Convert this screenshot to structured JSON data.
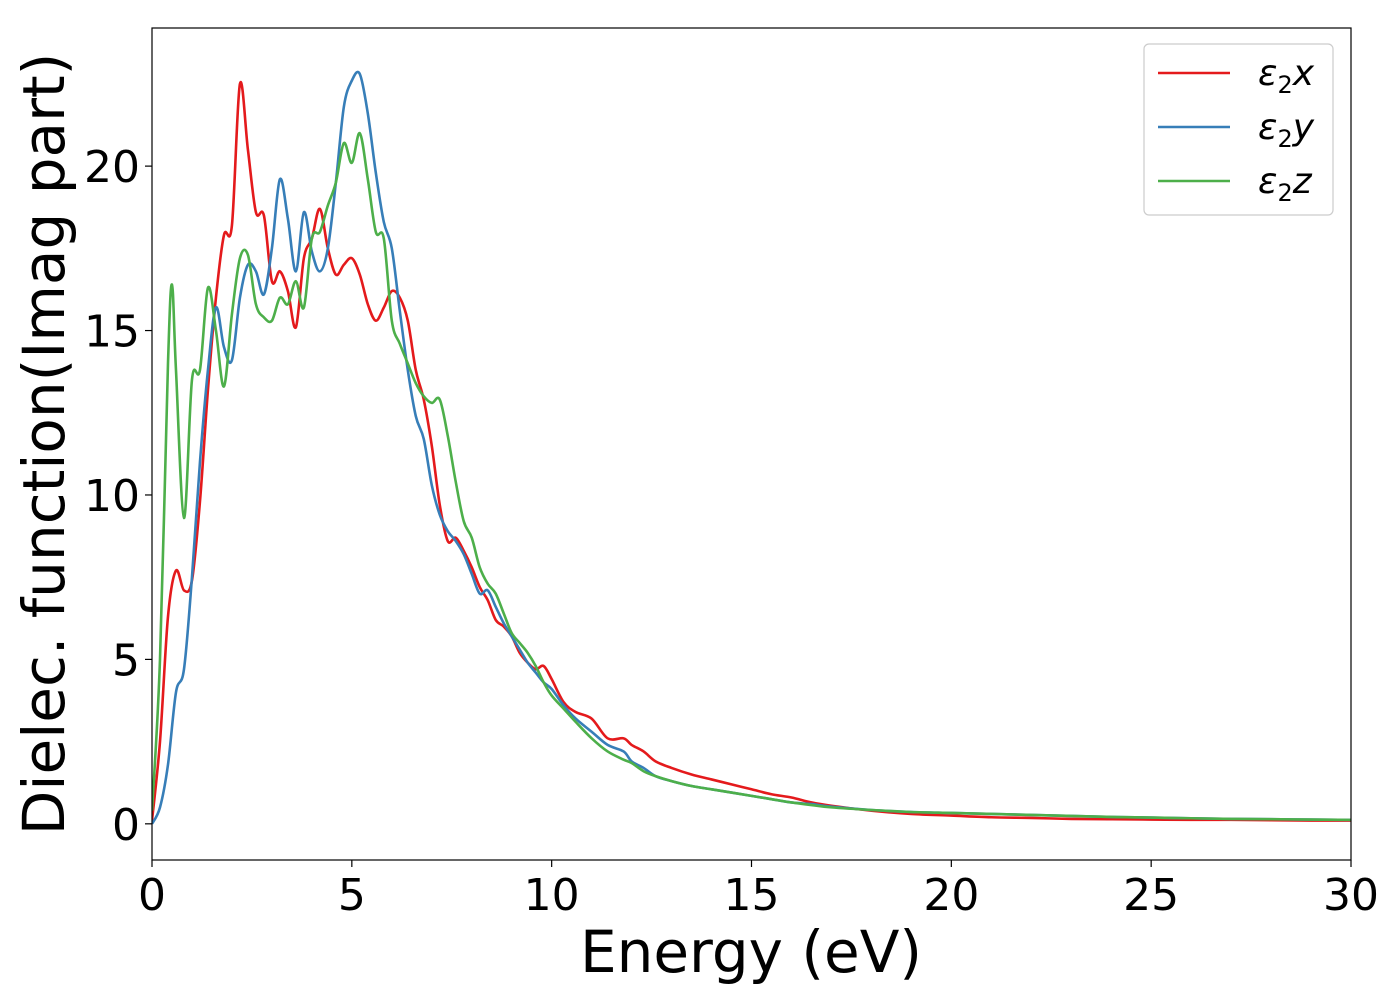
{
  "chart_data": {
    "type": "line",
    "xlabel": "Energy (eV)",
    "ylabel": "Dielec. function(Imag part)",
    "xlim": [
      0,
      30
    ],
    "ylim": [
      -1.1,
      24.2
    ],
    "xticks": [
      0,
      5,
      10,
      15,
      20,
      25,
      30
    ],
    "yticks": [
      0,
      5,
      10,
      15,
      20
    ],
    "grid": false,
    "legend_position": "top-right",
    "series": [
      {
        "name": "ε2x",
        "legend_main": "ε",
        "legend_sub": "2",
        "legend_var": "x",
        "color": "#e41a1c",
        "x": [
          0,
          0.2,
          0.4,
          0.6,
          0.8,
          1.0,
          1.2,
          1.4,
          1.6,
          1.8,
          2.0,
          2.2,
          2.4,
          2.6,
          2.8,
          3.0,
          3.2,
          3.4,
          3.6,
          3.8,
          4.0,
          4.2,
          4.4,
          4.6,
          4.8,
          5.0,
          5.2,
          5.4,
          5.6,
          5.8,
          6.0,
          6.2,
          6.4,
          6.6,
          6.8,
          7.0,
          7.2,
          7.4,
          7.6,
          7.8,
          8.0,
          8.2,
          8.4,
          8.6,
          8.8,
          9.0,
          9.2,
          9.4,
          9.6,
          9.8,
          10.0,
          10.3,
          10.6,
          11.0,
          11.4,
          11.8,
          12.0,
          12.3,
          12.6,
          13.0,
          13.5,
          14.0,
          14.5,
          15.0,
          15.5,
          16.0,
          16.5,
          17.0,
          18.0,
          19.0,
          20.0,
          21.0,
          22.0,
          23.0,
          24.0,
          25.0,
          26.0,
          27.0,
          28.0,
          29.0,
          30.0
        ],
        "values": [
          0.1,
          2.5,
          6.3,
          7.7,
          7.1,
          7.4,
          9.8,
          13.2,
          16.0,
          17.9,
          18.2,
          22.5,
          20.5,
          18.6,
          18.5,
          16.5,
          16.8,
          16.2,
          15.1,
          17.2,
          17.8,
          18.7,
          17.5,
          16.7,
          17.0,
          17.2,
          16.7,
          15.8,
          15.3,
          15.7,
          16.2,
          16.0,
          15.3,
          13.8,
          12.9,
          11.5,
          9.7,
          8.6,
          8.7,
          8.3,
          7.8,
          7.2,
          6.8,
          6.2,
          6.0,
          5.7,
          5.2,
          4.9,
          4.7,
          4.8,
          4.4,
          3.7,
          3.4,
          3.2,
          2.6,
          2.6,
          2.4,
          2.2,
          1.9,
          1.7,
          1.5,
          1.35,
          1.2,
          1.05,
          0.9,
          0.8,
          0.65,
          0.55,
          0.4,
          0.3,
          0.25,
          0.2,
          0.18,
          0.15,
          0.14,
          0.13,
          0.12,
          0.12,
          0.11,
          0.1,
          0.1
        ]
      },
      {
        "name": "ε2y",
        "legend_main": "ε",
        "legend_sub": "2",
        "legend_var": "y",
        "color": "#377eb8",
        "x": [
          0,
          0.2,
          0.4,
          0.6,
          0.8,
          1.0,
          1.2,
          1.4,
          1.6,
          1.8,
          2.0,
          2.2,
          2.4,
          2.6,
          2.8,
          3.0,
          3.2,
          3.4,
          3.6,
          3.8,
          4.0,
          4.2,
          4.4,
          4.6,
          4.8,
          5.0,
          5.2,
          5.4,
          5.6,
          5.8,
          6.0,
          6.2,
          6.4,
          6.6,
          6.8,
          7.0,
          7.2,
          7.4,
          7.6,
          7.8,
          8.0,
          8.2,
          8.4,
          8.6,
          8.8,
          9.0,
          9.2,
          9.4,
          9.6,
          9.8,
          10.0,
          10.3,
          10.6,
          11.0,
          11.4,
          11.8,
          12.0,
          12.3,
          12.6,
          13.0,
          13.5,
          14.0,
          14.5,
          15.0,
          15.5,
          16.0,
          16.5,
          17.0,
          18.0,
          19.0,
          20.0,
          21.0,
          22.0,
          23.0,
          24.0,
          25.0,
          26.0,
          27.0,
          28.0,
          29.0,
          30.0
        ],
        "values": [
          0,
          0.5,
          1.8,
          4.0,
          4.7,
          7.5,
          11.0,
          13.8,
          15.7,
          14.5,
          14.1,
          16.0,
          17.0,
          16.8,
          16.1,
          17.5,
          19.6,
          18.4,
          16.8,
          18.6,
          17.4,
          16.8,
          17.5,
          19.5,
          21.8,
          22.6,
          22.8,
          21.6,
          19.8,
          18.3,
          17.5,
          15.6,
          13.8,
          12.4,
          11.7,
          10.3,
          9.4,
          8.9,
          8.6,
          8.2,
          7.6,
          7.0,
          7.1,
          6.6,
          6.1,
          5.7,
          5.3,
          4.9,
          4.6,
          4.3,
          4.1,
          3.6,
          3.2,
          2.8,
          2.4,
          2.2,
          1.9,
          1.7,
          1.45,
          1.3,
          1.15,
          1.05,
          0.95,
          0.85,
          0.75,
          0.65,
          0.6,
          0.52,
          0.42,
          0.36,
          0.33,
          0.3,
          0.27,
          0.24,
          0.21,
          0.19,
          0.17,
          0.15,
          0.14,
          0.13,
          0.12
        ]
      },
      {
        "name": "ε2z",
        "legend_main": "ε",
        "legend_sub": "2",
        "legend_var": "z",
        "color": "#4daf4a",
        "x": [
          0,
          0.2,
          0.4,
          0.5,
          0.6,
          0.8,
          1.0,
          1.2,
          1.4,
          1.6,
          1.8,
          2.0,
          2.2,
          2.4,
          2.6,
          2.8,
          3.0,
          3.2,
          3.4,
          3.6,
          3.8,
          4.0,
          4.2,
          4.4,
          4.6,
          4.8,
          5.0,
          5.2,
          5.4,
          5.6,
          5.8,
          6.0,
          6.2,
          6.4,
          6.6,
          6.8,
          7.0,
          7.2,
          7.4,
          7.6,
          7.8,
          8.0,
          8.2,
          8.4,
          8.6,
          8.8,
          9.0,
          9.2,
          9.4,
          9.6,
          9.8,
          10.0,
          10.3,
          10.6,
          11.0,
          11.4,
          11.8,
          12.0,
          12.3,
          12.6,
          13.0,
          13.5,
          14.0,
          14.5,
          15.0,
          15.5,
          16.0,
          16.5,
          17.0,
          18.0,
          19.0,
          20.0,
          21.0,
          22.0,
          23.0,
          24.0,
          25.0,
          26.0,
          27.0,
          28.0,
          29.0,
          30.0
        ],
        "values": [
          0.4,
          5.0,
          14.0,
          16.4,
          13.8,
          9.3,
          13.5,
          13.8,
          16.3,
          15.0,
          13.3,
          15.5,
          17.2,
          17.3,
          15.8,
          15.4,
          15.3,
          16.0,
          15.8,
          16.5,
          15.7,
          17.8,
          18.0,
          18.8,
          19.5,
          20.7,
          20.1,
          21.0,
          19.6,
          18.0,
          17.8,
          15.3,
          14.6,
          14.0,
          13.4,
          13.0,
          12.8,
          12.9,
          11.8,
          10.4,
          9.2,
          8.7,
          7.8,
          7.3,
          7.0,
          6.4,
          5.8,
          5.5,
          5.2,
          4.8,
          4.3,
          3.9,
          3.5,
          3.1,
          2.6,
          2.2,
          1.95,
          1.85,
          1.6,
          1.45,
          1.3,
          1.15,
          1.05,
          0.95,
          0.85,
          0.75,
          0.65,
          0.57,
          0.5,
          0.42,
          0.36,
          0.33,
          0.3,
          0.27,
          0.24,
          0.21,
          0.19,
          0.17,
          0.15,
          0.14,
          0.13,
          0.12
        ]
      }
    ]
  }
}
